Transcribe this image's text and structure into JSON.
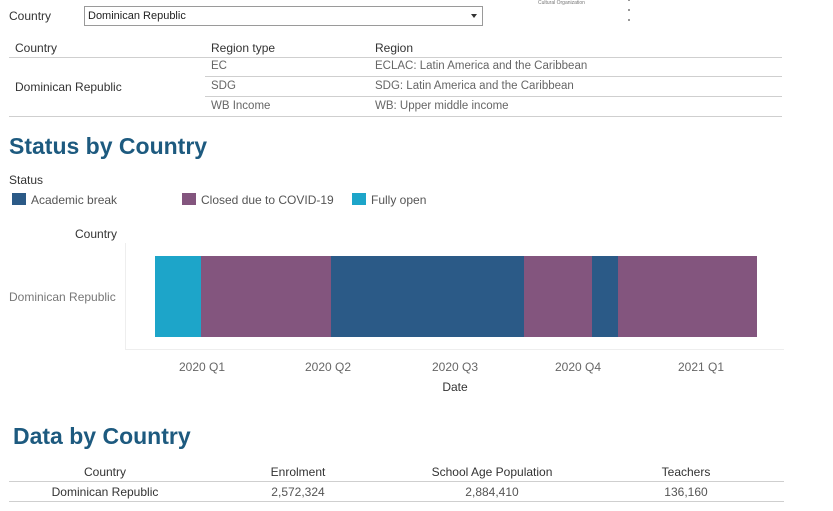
{
  "filter": {
    "label": "Country",
    "value": "Dominican Republic"
  },
  "logo": {
    "text": "Cultural Organization"
  },
  "region_table": {
    "headers": [
      "Country",
      "Region type",
      "Region"
    ],
    "country": "Dominican Republic",
    "rows": [
      {
        "type": "EC",
        "region": "ECLAC: Latin America and the Caribbean"
      },
      {
        "type": "SDG",
        "region": "SDG: Latin America and the Caribbean"
      },
      {
        "type": "WB Income",
        "region": "WB: Upper middle income"
      }
    ]
  },
  "status_section": {
    "title": "Status by Country",
    "legend_title": "Status",
    "legend": [
      {
        "label": "Academic break",
        "color": "#2b5a87"
      },
      {
        "label": "Closed due to COVID-19",
        "color": "#83557e"
      },
      {
        "label": "Fully open",
        "color": "#1da5c9"
      }
    ]
  },
  "chart_data": {
    "type": "bar",
    "orientation": "horizontal-timeline",
    "row_header": "Country",
    "row": "Dominican Republic",
    "xlabel": "Date",
    "x_ticks": [
      "2020 Q1",
      "2020 Q2",
      "2020 Q3",
      "2020 Q4",
      "2021 Q1"
    ],
    "x_range": [
      "2020-02-16",
      "2021-04-14"
    ],
    "segments": [
      {
        "status": "Fully open",
        "start": "2020-02-16",
        "end": "2020-03-19",
        "color": "#1da5c9"
      },
      {
        "status": "Closed due to COVID-19",
        "start": "2020-03-19",
        "end": "2020-06-19",
        "color": "#83557e"
      },
      {
        "status": "Academic break",
        "start": "2020-06-19",
        "end": "2020-11-01",
        "color": "#2b5a87"
      },
      {
        "status": "Closed due to COVID-19",
        "start": "2020-11-01",
        "end": "2020-12-19",
        "color": "#83557e"
      },
      {
        "status": "Academic break",
        "start": "2020-12-19",
        "end": "2021-01-06",
        "color": "#2b5a87"
      },
      {
        "status": "Closed due to COVID-19",
        "start": "2021-01-06",
        "end": "2021-04-14",
        "color": "#83557e"
      }
    ]
  },
  "data_section": {
    "title": "Data by Country",
    "headers": [
      "Country",
      "Enrolment",
      "School Age Population",
      "Teachers"
    ],
    "row": [
      "Dominican Republic",
      "2,572,324",
      "2,884,410",
      "136,160"
    ]
  }
}
